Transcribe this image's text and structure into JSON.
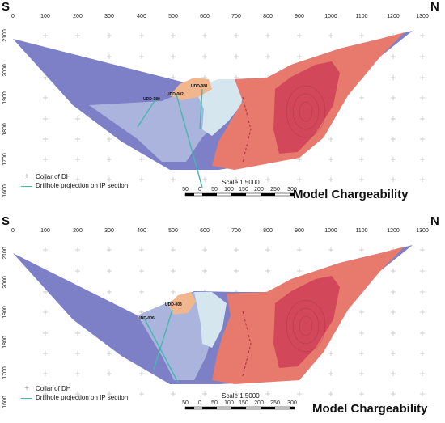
{
  "panels": [
    {
      "orient_left": "S",
      "orient_right": "N",
      "title": "Model Chargeability",
      "scale_label": "Scale 1:5000",
      "x_ticks": [
        "0",
        "100",
        "200",
        "300",
        "400",
        "500",
        "600",
        "700",
        "800",
        "900",
        "1000",
        "1100",
        "1200",
        "1300"
      ],
      "y_ticks": [
        "2100",
        "2000",
        "1900",
        "1800",
        "1700",
        "1600"
      ],
      "legend": [
        "Collar of DH",
        "Drillhole projection on IP section"
      ],
      "scale_ticks": [
        "50",
        "0",
        "50",
        "100",
        "150",
        "200",
        "250",
        "300"
      ],
      "drillholes": [
        "UDD-080",
        "UDD-002",
        "UDD-081"
      ]
    },
    {
      "orient_left": "S",
      "orient_right": "N",
      "title": "Model Chargeability",
      "scale_label": "Scale 1:5000",
      "x_ticks": [
        "0",
        "100",
        "200",
        "300",
        "400",
        "500",
        "600",
        "700",
        "800",
        "900",
        "1000",
        "1100",
        "1200",
        "1300"
      ],
      "y_ticks": [
        "2100",
        "2000",
        "1900",
        "1800",
        "1700",
        "1600"
      ],
      "legend": [
        "Collar of DH",
        "Drillhole projection on IP section"
      ],
      "scale_ticks": [
        "50",
        "0",
        "50",
        "100",
        "150",
        "200",
        "250",
        "300"
      ],
      "drillholes": [
        "UDD-006",
        "UDD-003"
      ]
    }
  ],
  "colors": {
    "low": "#7d80c6",
    "low_mid": "#aab4dd",
    "mid": "#d6e6ef",
    "warm": "#f2b68e",
    "hot": "#e8796d",
    "hottest": "#d2475a",
    "drillhole": "#45b8b0"
  }
}
